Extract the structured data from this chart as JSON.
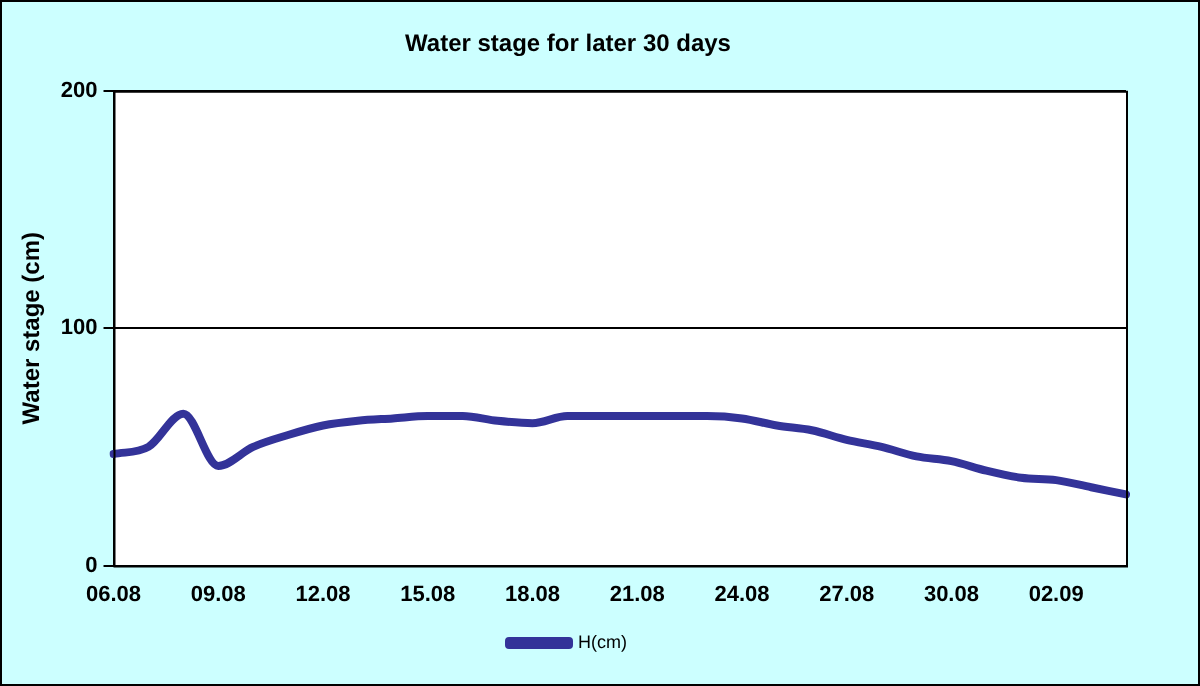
{
  "chart_data": {
    "type": "line",
    "title": "Water stage for later 30 days",
    "ylabel": "Water stage (cm)",
    "categories": [
      "06.08",
      null,
      null,
      "09.08",
      null,
      null,
      "12.08",
      null,
      null,
      "15.08",
      null,
      null,
      "18.08",
      null,
      null,
      "21.08",
      null,
      null,
      "24.08",
      null,
      null,
      "27.08",
      null,
      null,
      "30.08",
      null,
      null,
      "02.09",
      null,
      null
    ],
    "series": [
      {
        "name": "H(cm)",
        "color": "#333399",
        "values": [
          47,
          50,
          64,
          42,
          50,
          55,
          59,
          61,
          62,
          63,
          63,
          61,
          60,
          63,
          63,
          63,
          63,
          63,
          62,
          59,
          57,
          53,
          50,
          46,
          44,
          40,
          37,
          36,
          33,
          30
        ]
      }
    ],
    "ylim": [
      0,
      200
    ],
    "yticks": [
      0,
      100,
      200
    ],
    "grid": "y",
    "legend": "bottom",
    "marker": "none",
    "line_style": "solid"
  }
}
